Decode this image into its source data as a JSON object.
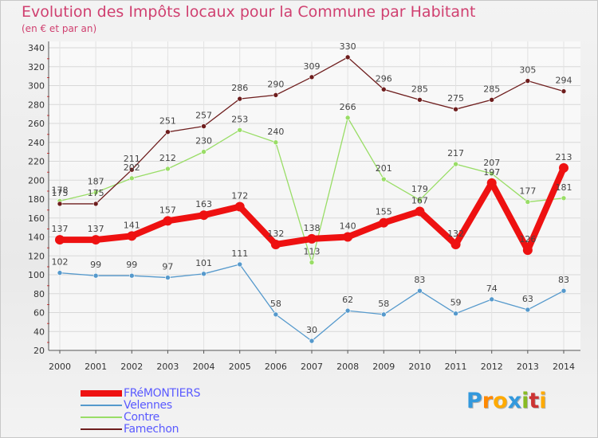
{
  "title": "Evolution des Impôts locaux pour la Commune par Habitant",
  "subtitle": "(en € et par an)",
  "logo": {
    "text": "Proxiti",
    "letters": [
      "P",
      "r",
      "o",
      "x",
      "i",
      "t",
      "i"
    ],
    "colors": [
      "#3399dd",
      "#ff8800",
      "#ffaa00",
      "#3399dd",
      "#88bb22",
      "#cc3333",
      "#ffaa00"
    ]
  },
  "chart_data": {
    "type": "line",
    "title": "Evolution des Impôts locaux pour la Commune par Habitant",
    "subtitle": "(en € et par an)",
    "xlabel": "",
    "ylabel": "",
    "ylim": [
      20,
      340
    ],
    "yticks": [
      20,
      40,
      60,
      80,
      100,
      120,
      140,
      160,
      180,
      200,
      220,
      240,
      260,
      280,
      300,
      320,
      340
    ],
    "categories": [
      "2000",
      "2001",
      "2002",
      "2003",
      "2004",
      "2005",
      "2006",
      "2007",
      "2008",
      "2009",
      "2010",
      "2011",
      "2012",
      "2013",
      "2014"
    ],
    "series": [
      {
        "name": "FRéMONTIERS",
        "color": "#ee1111",
        "style": "thick",
        "values": [
          137,
          137,
          141,
          157,
          163,
          172,
          132,
          138,
          140,
          155,
          167,
          132,
          197,
          126,
          213
        ]
      },
      {
        "name": "Velennes",
        "color": "#5599cc",
        "style": "thin",
        "values": [
          102,
          99,
          99,
          97,
          101,
          111,
          58,
          30,
          62,
          58,
          83,
          59,
          74,
          63,
          83
        ]
      },
      {
        "name": "Contre",
        "color": "#99dd66",
        "style": "thin",
        "values": [
          178,
          187,
          202,
          212,
          230,
          253,
          240,
          113,
          266,
          201,
          179,
          217,
          207,
          177,
          181
        ]
      },
      {
        "name": "Famechon",
        "color": "#6e1d1d",
        "style": "thin",
        "values": [
          175,
          175,
          211,
          251,
          257,
          286,
          290,
          309,
          330,
          296,
          285,
          275,
          285,
          305,
          294
        ]
      }
    ]
  }
}
